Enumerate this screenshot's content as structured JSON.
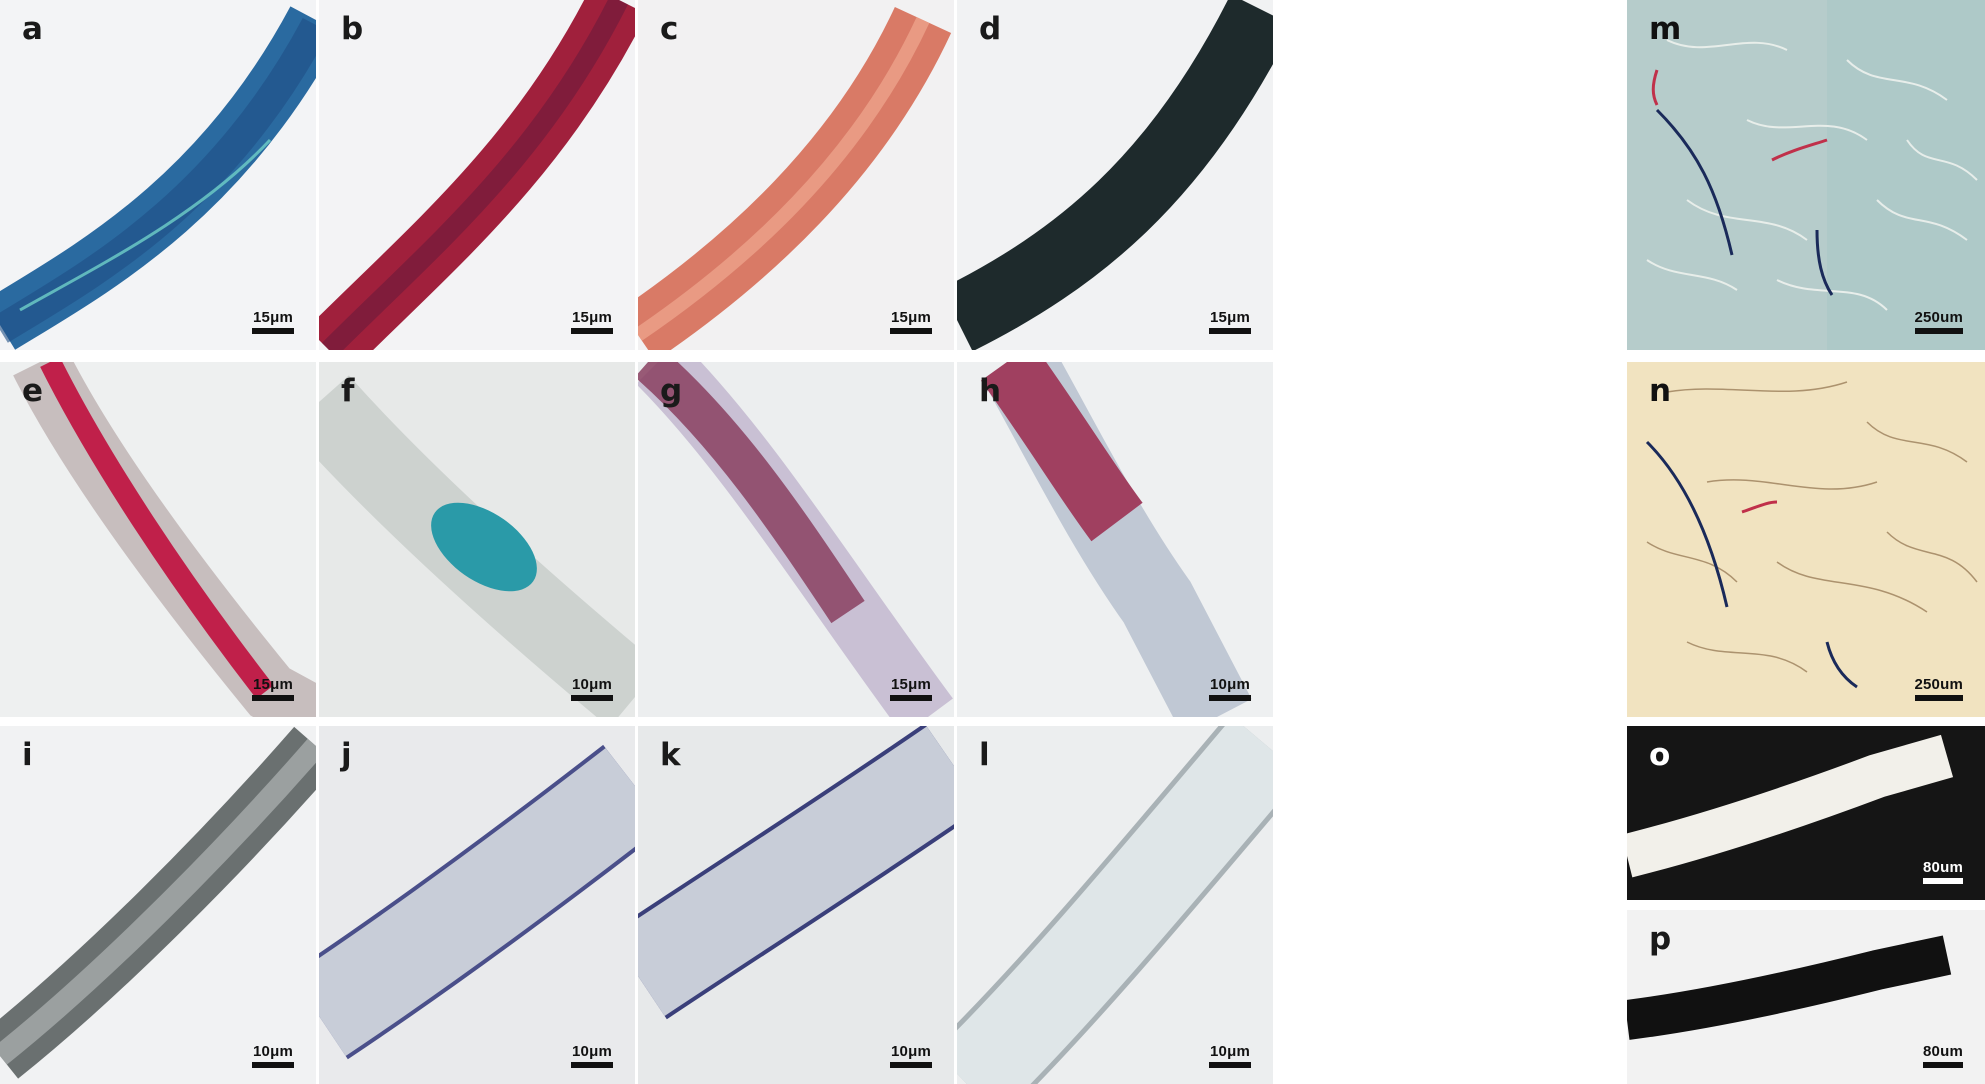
{
  "panels": {
    "a": {
      "label": "a",
      "scale": "15μm",
      "fiber_color": "#2a6aa0",
      "bg_color": "#f2f3f5"
    },
    "b": {
      "label": "b",
      "scale": "15μm",
      "fiber_color": "#a0203c",
      "bg_color": "#f3f3f5"
    },
    "c": {
      "label": "c",
      "scale": "15μm",
      "fiber_color": "#d97a66",
      "bg_color": "#f2f1f2"
    },
    "d": {
      "label": "d",
      "scale": "15μm",
      "fiber_color": "#1e2a2c",
      "bg_color": "#f1f2f3"
    },
    "e": {
      "label": "e",
      "scale": "15μm",
      "fiber_color": "#c0204a",
      "bg_color": "#eef0f0"
    },
    "f": {
      "label": "f",
      "scale": "10μm",
      "fiber_color": "#2a9aa8",
      "bg_color": "#e7e9e8"
    },
    "g": {
      "label": "g",
      "scale": "15μm",
      "fiber_color": "#8a4060",
      "bg_color": "#eceeef"
    },
    "h": {
      "label": "h",
      "scale": "10μm",
      "fiber_color": "#a04060",
      "bg_color": "#eef0f1"
    },
    "i": {
      "label": "i",
      "scale": "10μm",
      "fiber_color": "#6a7070",
      "bg_color": "#f1f2f3"
    },
    "j": {
      "label": "j",
      "scale": "10μm",
      "fiber_color": "#c8cdd8",
      "bg_color": "#e9eaec"
    },
    "k": {
      "label": "k",
      "scale": "10μm",
      "fiber_color": "#c8cdd8",
      "bg_color": "#e7e9ea"
    },
    "l": {
      "label": "l",
      "scale": "10μm",
      "fiber_color": "#dfe6e8",
      "bg_color": "#eceeef"
    },
    "m": {
      "label": "m",
      "scale": "250um",
      "bg_color": "#b6cccb"
    },
    "n": {
      "label": "n",
      "scale": "250um",
      "bg_color": "#f1e3c0"
    },
    "o": {
      "label": "o",
      "scale": "80um",
      "bg_color": "#151515"
    },
    "p": {
      "label": "p",
      "scale": "80um",
      "bg_color": "#f2f2f2"
    }
  }
}
